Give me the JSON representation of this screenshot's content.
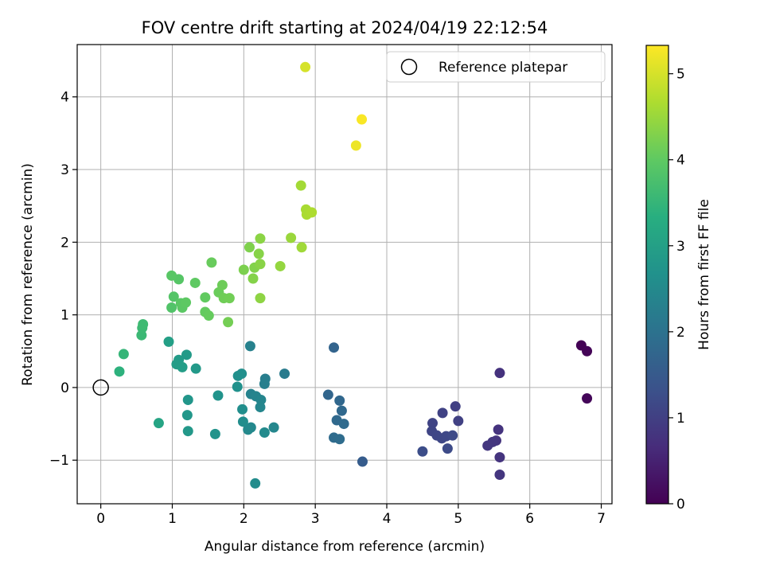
{
  "chart_data": {
    "type": "scatter",
    "title": "FOV centre drift starting at 2024/04/19 22:12:54",
    "xlabel": "Angular distance from reference (arcmin)",
    "ylabel": "Rotation from reference (arcmin)",
    "xlim": [
      -0.33,
      7.15
    ],
    "ylim": [
      -1.6,
      4.72
    ],
    "xticks": [
      0,
      1,
      2,
      3,
      4,
      5,
      6,
      7
    ],
    "yticks": [
      -1,
      0,
      1,
      2,
      3,
      4
    ],
    "grid": true,
    "legend": {
      "position": "top-right",
      "entries": [
        "Reference platepar"
      ]
    },
    "reference_point": {
      "x": 0,
      "y": 0
    },
    "colorbar": {
      "label": "Hours from first FF file",
      "range": [
        0,
        5.33
      ],
      "ticks": [
        0,
        1,
        2,
        3,
        4,
        5
      ],
      "colormap": "viridis"
    },
    "points": [
      {
        "x": 6.72,
        "y": 0.58,
        "c": 0.02
      },
      {
        "x": 6.8,
        "y": 0.5,
        "c": 0.05
      },
      {
        "x": 6.8,
        "y": -0.15,
        "c": 0.08
      },
      {
        "x": 5.58,
        "y": 0.2,
        "c": 0.75
      },
      {
        "x": 5.56,
        "y": -0.58,
        "c": 0.78
      },
      {
        "x": 5.53,
        "y": -0.73,
        "c": 0.8
      },
      {
        "x": 5.48,
        "y": -0.75,
        "c": 0.82
      },
      {
        "x": 5.41,
        "y": -0.8,
        "c": 0.85
      },
      {
        "x": 5.58,
        "y": -0.96,
        "c": 0.8
      },
      {
        "x": 5.58,
        "y": -1.2,
        "c": 0.82
      },
      {
        "x": 4.96,
        "y": -0.26,
        "c": 1.0
      },
      {
        "x": 5.0,
        "y": -0.46,
        "c": 1.02
      },
      {
        "x": 4.78,
        "y": -0.35,
        "c": 1.05
      },
      {
        "x": 4.64,
        "y": -0.49,
        "c": 1.08
      },
      {
        "x": 4.63,
        "y": -0.6,
        "c": 1.1
      },
      {
        "x": 4.7,
        "y": -0.66,
        "c": 1.12
      },
      {
        "x": 4.77,
        "y": -0.7,
        "c": 1.14
      },
      {
        "x": 4.83,
        "y": -0.67,
        "c": 1.16
      },
      {
        "x": 4.92,
        "y": -0.66,
        "c": 1.18
      },
      {
        "x": 4.85,
        "y": -0.84,
        "c": 1.2
      },
      {
        "x": 4.5,
        "y": -0.88,
        "c": 1.25
      },
      {
        "x": 3.66,
        "y": -1.02,
        "c": 1.55
      },
      {
        "x": 3.26,
        "y": 0.55,
        "c": 1.7
      },
      {
        "x": 3.18,
        "y": -0.1,
        "c": 1.75
      },
      {
        "x": 3.34,
        "y": -0.18,
        "c": 1.78
      },
      {
        "x": 3.37,
        "y": -0.32,
        "c": 1.8
      },
      {
        "x": 3.3,
        "y": -0.45,
        "c": 1.82
      },
      {
        "x": 3.4,
        "y": -0.5,
        "c": 1.84
      },
      {
        "x": 3.26,
        "y": -0.69,
        "c": 1.86
      },
      {
        "x": 3.34,
        "y": -0.71,
        "c": 1.88
      },
      {
        "x": 2.57,
        "y": 0.19,
        "c": 2.2
      },
      {
        "x": 2.3,
        "y": 0.12,
        "c": 2.25
      },
      {
        "x": 2.29,
        "y": 0.05,
        "c": 2.28
      },
      {
        "x": 2.09,
        "y": 0.57,
        "c": 2.32
      },
      {
        "x": 2.1,
        "y": -0.09,
        "c": 2.35
      },
      {
        "x": 2.17,
        "y": -0.12,
        "c": 2.38
      },
      {
        "x": 2.24,
        "y": -0.17,
        "c": 2.4
      },
      {
        "x": 2.23,
        "y": -0.27,
        "c": 2.42
      },
      {
        "x": 2.42,
        "y": -0.55,
        "c": 2.45
      },
      {
        "x": 2.1,
        "y": -0.55,
        "c": 2.48
      },
      {
        "x": 2.06,
        "y": -0.58,
        "c": 2.5
      },
      {
        "x": 2.29,
        "y": -0.62,
        "c": 2.52
      },
      {
        "x": 2.16,
        "y": -1.32,
        "c": 2.55
      },
      {
        "x": 1.99,
        "y": -0.47,
        "c": 2.58
      },
      {
        "x": 1.98,
        "y": -0.3,
        "c": 2.6
      },
      {
        "x": 1.97,
        "y": 0.19,
        "c": 2.62
      },
      {
        "x": 1.92,
        "y": 0.16,
        "c": 2.64
      },
      {
        "x": 1.91,
        "y": 0.01,
        "c": 2.66
      },
      {
        "x": 1.64,
        "y": -0.11,
        "c": 2.7
      },
      {
        "x": 1.6,
        "y": -0.64,
        "c": 2.72
      },
      {
        "x": 1.22,
        "y": -0.17,
        "c": 2.78
      },
      {
        "x": 1.21,
        "y": -0.38,
        "c": 2.8
      },
      {
        "x": 1.22,
        "y": -0.6,
        "c": 2.82
      },
      {
        "x": 1.33,
        "y": 0.26,
        "c": 2.85
      },
      {
        "x": 1.2,
        "y": 0.45,
        "c": 2.88
      },
      {
        "x": 1.09,
        "y": 0.38,
        "c": 2.9
      },
      {
        "x": 1.06,
        "y": 0.32,
        "c": 2.92
      },
      {
        "x": 1.14,
        "y": 0.28,
        "c": 2.94
      },
      {
        "x": 0.95,
        "y": 0.63,
        "c": 2.98
      },
      {
        "x": 0.81,
        "y": -0.49,
        "c": 3.1
      },
      {
        "x": 0.26,
        "y": 0.22,
        "c": 3.4
      },
      {
        "x": 0.32,
        "y": 0.46,
        "c": 3.5
      },
      {
        "x": 0.57,
        "y": 0.72,
        "c": 3.58
      },
      {
        "x": 0.58,
        "y": 0.82,
        "c": 3.6
      },
      {
        "x": 0.59,
        "y": 0.87,
        "c": 3.62
      },
      {
        "x": 0.99,
        "y": 1.1,
        "c": 3.85
      },
      {
        "x": 1.02,
        "y": 1.25,
        "c": 3.88
      },
      {
        "x": 1.09,
        "y": 1.49,
        "c": 3.9
      },
      {
        "x": 0.99,
        "y": 1.54,
        "c": 3.92
      },
      {
        "x": 1.12,
        "y": 1.16,
        "c": 3.95
      },
      {
        "x": 1.14,
        "y": 1.1,
        "c": 3.96
      },
      {
        "x": 1.19,
        "y": 1.17,
        "c": 3.98
      },
      {
        "x": 1.32,
        "y": 1.44,
        "c": 4.0
      },
      {
        "x": 1.46,
        "y": 1.24,
        "c": 4.02
      },
      {
        "x": 1.46,
        "y": 1.04,
        "c": 4.04
      },
      {
        "x": 1.51,
        "y": 0.99,
        "c": 4.06
      },
      {
        "x": 1.55,
        "y": 1.72,
        "c": 4.08
      },
      {
        "x": 1.65,
        "y": 1.31,
        "c": 4.1
      },
      {
        "x": 1.7,
        "y": 1.41,
        "c": 4.12
      },
      {
        "x": 1.72,
        "y": 1.23,
        "c": 4.14
      },
      {
        "x": 1.8,
        "y": 1.23,
        "c": 4.16
      },
      {
        "x": 1.78,
        "y": 0.9,
        "c": 4.18
      },
      {
        "x": 2.0,
        "y": 1.62,
        "c": 4.25
      },
      {
        "x": 2.08,
        "y": 1.93,
        "c": 4.28
      },
      {
        "x": 2.15,
        "y": 1.65,
        "c": 4.3
      },
      {
        "x": 2.13,
        "y": 1.5,
        "c": 4.32
      },
      {
        "x": 2.21,
        "y": 1.84,
        "c": 4.34
      },
      {
        "x": 2.23,
        "y": 1.7,
        "c": 4.36
      },
      {
        "x": 2.23,
        "y": 2.05,
        "c": 4.38
      },
      {
        "x": 2.23,
        "y": 1.23,
        "c": 4.4
      },
      {
        "x": 2.51,
        "y": 1.67,
        "c": 4.45
      },
      {
        "x": 2.66,
        "y": 2.06,
        "c": 4.5
      },
      {
        "x": 2.81,
        "y": 1.93,
        "c": 4.55
      },
      {
        "x": 2.8,
        "y": 2.78,
        "c": 4.58
      },
      {
        "x": 2.87,
        "y": 2.45,
        "c": 4.62
      },
      {
        "x": 2.88,
        "y": 2.38,
        "c": 4.64
      },
      {
        "x": 2.95,
        "y": 2.41,
        "c": 4.66
      },
      {
        "x": 2.86,
        "y": 4.41,
        "c": 5.0
      },
      {
        "x": 3.57,
        "y": 3.33,
        "c": 5.2
      },
      {
        "x": 3.65,
        "y": 3.69,
        "c": 5.3
      }
    ]
  }
}
